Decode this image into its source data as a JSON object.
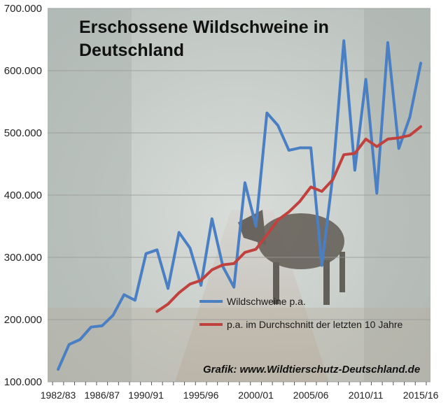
{
  "chart_data": {
    "type": "line",
    "title_lines": [
      "Erschossene Wildschweine in",
      "Deutschland"
    ],
    "x_tick_labels": [
      "1982/83",
      "1986/87",
      "1990/91",
      "1995/96",
      "2000/01",
      "2005/06",
      "2010/11",
      "2015/16"
    ],
    "y_tick_labels": [
      "100.000",
      "200.000",
      "300.000",
      "400.000",
      "500.000",
      "600.000",
      "700.000"
    ],
    "ylim": [
      100000,
      700000
    ],
    "grid": "horizontal",
    "legend_placement": "center-bottom",
    "credit": "Grafik: www.Wildtierschutz-Deutschland.de",
    "seasons": [
      "1982/83",
      "1983/84",
      "1984/85",
      "1985/86",
      "1986/87",
      "1987/88",
      "1988/89",
      "1989/90",
      "1990/91",
      "1991/92",
      "1992/93",
      "1993/94",
      "1994/95",
      "1995/96",
      "1996/97",
      "1997/98",
      "1998/99",
      "1999/00",
      "2000/01",
      "2001/02",
      "2002/03",
      "2003/04",
      "2004/05",
      "2005/06",
      "2006/07",
      "2007/08",
      "2008/09",
      "2009/10",
      "2010/11",
      "2011/12",
      "2012/13",
      "2013/14",
      "2014/15",
      "2015/16"
    ],
    "series": [
      {
        "name": "Wildschweine p.a.",
        "color": "#4a7fc4",
        "values": [
          120000,
          160000,
          168000,
          188000,
          190000,
          207000,
          240000,
          231000,
          306000,
          312000,
          250000,
          340000,
          315000,
          255000,
          362000,
          285000,
          252000,
          420000,
          350000,
          532000,
          512000,
          472000,
          476000,
          476000,
          287000,
          432000,
          648000,
          440000,
          586000,
          403000,
          645000,
          475000,
          525000,
          612000
        ]
      },
      {
        "name": "p.a. im Durchschnitt der letzten 10 Jahre",
        "color": "#c0413d",
        "values": [
          null,
          null,
          null,
          null,
          null,
          null,
          null,
          null,
          null,
          213000,
          225000,
          243000,
          257000,
          263000,
          280000,
          288000,
          290000,
          308000,
          313000,
          336000,
          360000,
          373000,
          390000,
          413000,
          406000,
          425000,
          465000,
          467000,
          490000,
          478000,
          490000,
          492000,
          496000,
          510000
        ]
      }
    ]
  }
}
